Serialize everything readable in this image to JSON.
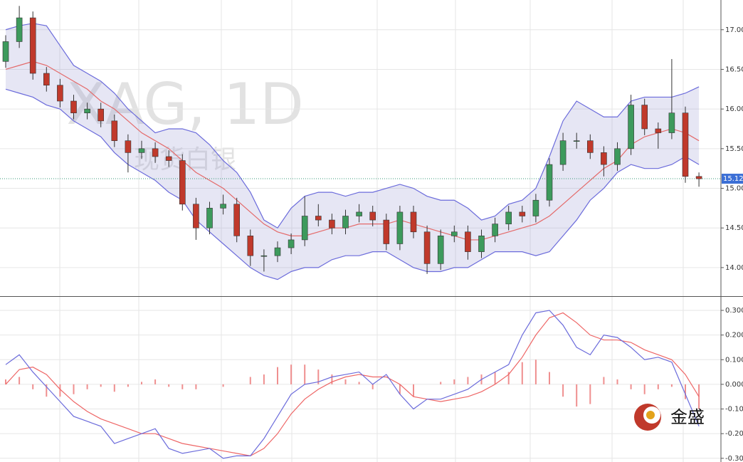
{
  "chart_data": [
    {
      "type": "candlestick",
      "title": "XAG, 1D",
      "subtitle": "现货白银",
      "last_price": 15.121,
      "ylim": [
        13.64,
        17.33
      ],
      "yticks": [
        {
          "value": 14,
          "label": "14.00"
        },
        {
          "value": 14.5,
          "label": "14.50"
        },
        {
          "value": 15,
          "label": "15.00"
        },
        {
          "value": 15.5,
          "label": "15.50"
        },
        {
          "value": 16,
          "label": "16.00"
        },
        {
          "value": 16.5,
          "label": "16.50"
        },
        {
          "value": 17,
          "label": "17.00"
        }
      ],
      "open": [
        16.6,
        16.85,
        17.15,
        16.45,
        16.3,
        16.1,
        15.95,
        16.0,
        15.85,
        15.6,
        15.45,
        15.5,
        15.4,
        15.35,
        14.8,
        14.5,
        14.75,
        14.8,
        14.4,
        14.15,
        14.15,
        14.25,
        14.35,
        14.65,
        14.6,
        14.5,
        14.65,
        14.7,
        14.6,
        14.3,
        14.7,
        14.45,
        14.05,
        14.4,
        14.45,
        14.2,
        14.4,
        14.55,
        14.7,
        14.65,
        14.85,
        15.3,
        15.6,
        15.6,
        15.45,
        15.3,
        15.5,
        16.05,
        15.75,
        15.7,
        15.95,
        15.15
      ],
      "high": [
        16.93,
        17.3,
        17.23,
        16.53,
        16.38,
        16.18,
        16.08,
        16.08,
        15.93,
        15.68,
        15.6,
        15.58,
        15.48,
        15.43,
        14.88,
        14.83,
        14.92,
        14.88,
        14.48,
        14.23,
        14.33,
        14.43,
        14.9,
        14.8,
        14.68,
        14.73,
        14.8,
        14.78,
        14.68,
        14.78,
        14.78,
        14.53,
        14.48,
        14.53,
        14.53,
        14.48,
        14.63,
        14.78,
        14.78,
        14.93,
        15.38,
        15.7,
        15.7,
        15.68,
        15.53,
        15.58,
        16.18,
        16.13,
        15.83,
        16.63,
        16.03,
        15.2
      ],
      "low": [
        16.52,
        16.77,
        16.37,
        16.22,
        16.02,
        15.87,
        15.87,
        15.77,
        15.52,
        15.2,
        15.37,
        15.32,
        15.27,
        14.72,
        14.35,
        14.42,
        14.67,
        14.32,
        14.02,
        13.95,
        14.07,
        14.17,
        14.27,
        14.52,
        14.42,
        14.42,
        14.57,
        14.52,
        14.22,
        14.22,
        14.37,
        13.92,
        13.97,
        14.32,
        14.1,
        14.12,
        14.32,
        14.47,
        14.57,
        14.57,
        14.77,
        15.22,
        15.5,
        15.37,
        15.15,
        15.22,
        15.42,
        15.67,
        15.5,
        15.62,
        15.07,
        15.02
      ],
      "close": [
        16.85,
        17.15,
        16.45,
        16.3,
        16.1,
        15.95,
        16.0,
        15.85,
        15.6,
        15.45,
        15.5,
        15.4,
        15.35,
        14.8,
        14.5,
        14.75,
        14.8,
        14.4,
        14.15,
        14.15,
        14.25,
        14.35,
        14.65,
        14.6,
        14.5,
        14.65,
        14.7,
        14.6,
        14.3,
        14.7,
        14.45,
        14.05,
        14.4,
        14.45,
        14.2,
        14.4,
        14.55,
        14.7,
        14.65,
        14.85,
        15.3,
        15.6,
        15.6,
        15.45,
        15.3,
        15.5,
        16.05,
        15.75,
        15.7,
        15.95,
        15.15,
        15.12
      ],
      "upper": [
        17.0,
        17.05,
        17.08,
        17.05,
        16.8,
        16.55,
        16.45,
        16.35,
        16.2,
        16.0,
        15.85,
        15.7,
        15.75,
        15.75,
        15.7,
        15.55,
        15.35,
        15.2,
        14.95,
        14.6,
        14.5,
        14.75,
        14.9,
        14.95,
        14.95,
        14.9,
        14.95,
        14.95,
        15.0,
        15.05,
        15.0,
        14.9,
        14.85,
        14.85,
        14.75,
        14.6,
        14.65,
        14.8,
        14.85,
        15.0,
        15.4,
        15.85,
        16.1,
        16.0,
        15.9,
        15.9,
        16.1,
        16.15,
        16.15,
        16.15,
        16.2,
        16.28
      ],
      "middle": [
        16.5,
        16.55,
        16.6,
        16.55,
        16.45,
        16.35,
        16.25,
        16.1,
        16.0,
        15.85,
        15.7,
        15.6,
        15.5,
        15.35,
        15.2,
        15.1,
        15.0,
        14.85,
        14.7,
        14.55,
        14.45,
        14.4,
        14.4,
        14.45,
        14.5,
        14.5,
        14.55,
        14.55,
        14.55,
        14.6,
        14.55,
        14.5,
        14.45,
        14.4,
        14.35,
        14.35,
        14.4,
        14.45,
        14.5,
        14.55,
        14.65,
        14.8,
        14.95,
        15.1,
        15.25,
        15.35,
        15.55,
        15.65,
        15.7,
        15.75,
        15.7,
        15.6
      ],
      "lower": [
        16.25,
        16.2,
        16.15,
        16.05,
        16.0,
        15.85,
        15.75,
        15.65,
        15.45,
        15.3,
        15.2,
        15.1,
        14.95,
        14.85,
        14.6,
        14.45,
        14.3,
        14.15,
        14.0,
        13.9,
        13.85,
        13.95,
        14.0,
        14.0,
        14.1,
        14.15,
        14.15,
        14.2,
        14.2,
        14.1,
        14.0,
        13.95,
        13.95,
        14.0,
        14.0,
        14.1,
        14.2,
        14.2,
        14.2,
        14.15,
        14.2,
        14.4,
        14.6,
        14.85,
        15.0,
        15.2,
        15.3,
        15.25,
        15.25,
        15.3,
        15.4,
        15.3
      ]
    },
    {
      "type": "macd",
      "ylim": [
        -0.315,
        0.352
      ],
      "yticks": [
        {
          "value": -0.3,
          "label": "-0.300"
        },
        {
          "value": -0.2,
          "label": "-0.200"
        },
        {
          "value": -0.1,
          "label": "-0.100"
        },
        {
          "value": 0,
          "label": "0.000"
        },
        {
          "value": 0.1,
          "label": "0.100"
        },
        {
          "value": 0.2,
          "label": "0.200"
        },
        {
          "value": 0.3,
          "label": "0.300"
        }
      ],
      "macd": [
        0.08,
        0.12,
        0.05,
        -0.01,
        -0.07,
        -0.13,
        -0.15,
        -0.17,
        -0.24,
        -0.22,
        -0.2,
        -0.18,
        -0.26,
        -0.28,
        -0.27,
        -0.26,
        -0.3,
        -0.29,
        -0.29,
        -0.22,
        -0.13,
        -0.04,
        0.0,
        0.01,
        0.03,
        0.04,
        0.05,
        0.0,
        0.04,
        -0.04,
        -0.1,
        -0.06,
        -0.06,
        -0.04,
        -0.02,
        0.02,
        0.05,
        0.08,
        0.2,
        0.29,
        0.3,
        0.24,
        0.15,
        0.12,
        0.2,
        0.19,
        0.15,
        0.1,
        0.11,
        0.09,
        -0.04,
        -0.17
      ],
      "signal": [
        0.0,
        0.06,
        0.07,
        0.04,
        -0.02,
        -0.07,
        -0.11,
        -0.14,
        -0.16,
        -0.18,
        -0.2,
        -0.2,
        -0.22,
        -0.24,
        -0.25,
        -0.26,
        -0.27,
        -0.28,
        -0.29,
        -0.26,
        -0.2,
        -0.12,
        -0.06,
        -0.02,
        0.01,
        0.03,
        0.04,
        0.03,
        0.03,
        0.0,
        -0.05,
        -0.06,
        -0.07,
        -0.06,
        -0.05,
        -0.03,
        0.0,
        0.04,
        0.11,
        0.2,
        0.27,
        0.29,
        0.25,
        0.2,
        0.18,
        0.18,
        0.17,
        0.14,
        0.12,
        0.1,
        0.04,
        -0.05
      ],
      "histogram": [
        0.02,
        0.03,
        -0.02,
        -0.05,
        -0.05,
        -0.04,
        -0.02,
        -0.01,
        -0.03,
        -0.01,
        0.01,
        0.02,
        -0.01,
        -0.02,
        -0.02,
        0.0,
        -0.01,
        0.0,
        0.03,
        0.04,
        0.07,
        0.08,
        0.08,
        0.06,
        0.04,
        0.02,
        0.01,
        -0.02,
        0.0,
        -0.04,
        -0.05,
        0.0,
        0.01,
        0.02,
        0.03,
        0.04,
        0.05,
        0.05,
        0.09,
        0.1,
        0.05,
        -0.05,
        -0.09,
        -0.08,
        0.03,
        0.02,
        -0.02,
        -0.04,
        -0.02,
        -0.01,
        -0.06,
        -0.1
      ]
    }
  ],
  "logo": "金盛"
}
